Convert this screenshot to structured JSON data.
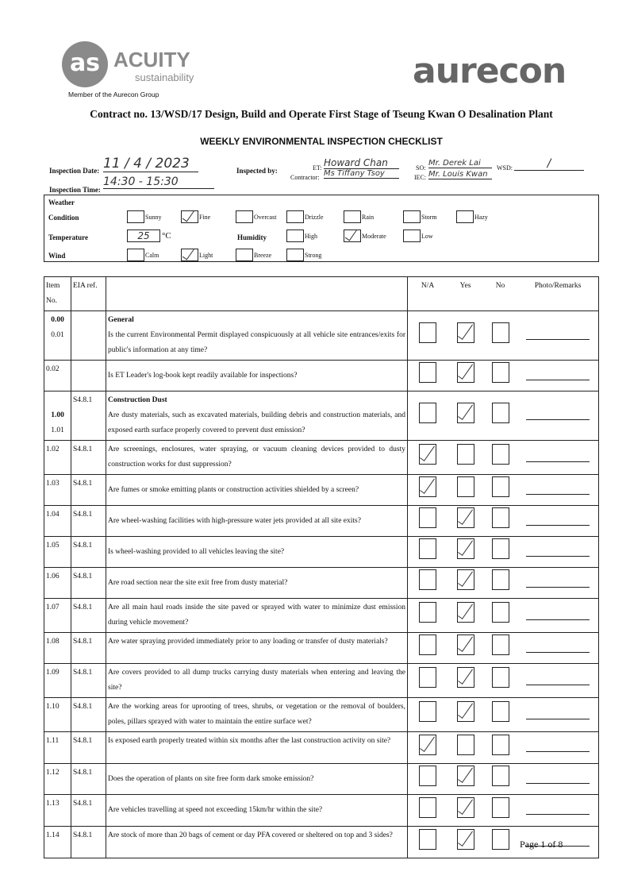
{
  "header": {
    "acuity_logo": "ACUITY sustainability",
    "acuity_sub": "Member of the Aurecon Group",
    "aurecon_logo": "aurecon",
    "contract": "Contract no. 13/WSD/17 Design, Build and Operate First Stage of Tseung Kwan O Desalination Plant",
    "title": "WEEKLY ENVIRONMENTAL INSPECTION CHECKLIST"
  },
  "info": {
    "date_label": "Inspection Date:",
    "date": "11 / 4 / 2023",
    "time_label": "Inspection Time:",
    "time": "14:30 - 15:30",
    "by_label": "Inspected by:",
    "et_label": "ET:",
    "et": "Howard Chan",
    "contractor_label": "Contractor:",
    "contractor": "Ms Tiffany Tsoy",
    "so_label": "SO:",
    "so": "Mr. Derek Lai",
    "iec_label": "IEC:",
    "iec": "Mr. Louis Kwan",
    "wsd_label": "WSD:",
    "wsd": "/"
  },
  "weather": {
    "heading": "Weather",
    "condition_label": "Condition",
    "temperature_label": "Temperature",
    "humidity_label": "Humidity",
    "wind_label": "Wind",
    "temperature": "25",
    "temp_unit": "°C",
    "conditions": [
      {
        "label": "Sunny",
        "checked": false
      },
      {
        "label": "Fine",
        "checked": true
      },
      {
        "label": "Overcast",
        "checked": false
      },
      {
        "label": "Drizzle",
        "checked": false
      },
      {
        "label": "Rain",
        "checked": false
      },
      {
        "label": "Storm",
        "checked": false
      },
      {
        "label": "Hazy",
        "checked": false
      }
    ],
    "humidity": [
      {
        "label": "High",
        "checked": false
      },
      {
        "label": "Moderate",
        "checked": true
      },
      {
        "label": "Low",
        "checked": false
      }
    ],
    "wind": [
      {
        "label": "Calm",
        "checked": false
      },
      {
        "label": "Light",
        "checked": true
      },
      {
        "label": "Breeze",
        "checked": false
      },
      {
        "label": "Strong",
        "checked": false
      }
    ]
  },
  "table": {
    "headers": {
      "item": "Item No.",
      "eia": "EIA ref.",
      "na": "N/A",
      "yes": "Yes",
      "no": "No",
      "remarks": "Photo/Remarks"
    },
    "rows": [
      {
        "item": "0.00\n0.01",
        "eia": "",
        "section": "General",
        "q": "Is the current Environmental Permit displayed conspicuously at all vehicle site entrances/exits for public's information at any time?",
        "ans": "yes"
      },
      {
        "item": "0.02",
        "eia": "",
        "q": "Is ET Leader's log-book kept readily available for inspections?",
        "ans": "yes"
      },
      {
        "item": "1.00\n1.01",
        "eia": "S4.8.1",
        "section": "Construction Dust",
        "q": "Are dusty materials, such as excavated materials, building debris and construction materials, and exposed earth surface properly covered to prevent dust emission?",
        "ans": "yes"
      },
      {
        "item": "1.02",
        "eia": "S4.8.1",
        "q": "Are screenings, enclosures, water spraying, or vacuum cleaning devices provided to dusty construction works for dust suppression?",
        "ans": "na"
      },
      {
        "item": "1.03",
        "eia": "S4.8.1",
        "q": "Are fumes or smoke emitting plants or construction activities shielded by a screen?",
        "ans": "na"
      },
      {
        "item": "1.04",
        "eia": "S4.8.1",
        "q": "Are wheel-washing facilities with high-pressure water jets provided at all site exits?",
        "ans": "yes"
      },
      {
        "item": "1.05",
        "eia": "S4.8.1",
        "q": "Is wheel-washing provided to all vehicles leaving the site?",
        "ans": "yes"
      },
      {
        "item": "1.06",
        "eia": "S4.8.1",
        "q": "Are road section near the site exit free from dusty material?",
        "ans": "yes"
      },
      {
        "item": "1.07",
        "eia": "S4.8.1",
        "q": "Are all main haul roads inside the site paved or sprayed with water to minimize dust emission during vehicle movement?",
        "ans": "yes"
      },
      {
        "item": "1.08",
        "eia": "S4.8.1",
        "q": "Are water spraying provided immediately prior to any loading or transfer of dusty materials?",
        "ans": "yes"
      },
      {
        "item": "1.09",
        "eia": "S4.8.1",
        "q": "Are covers provided to all dump trucks carrying dusty materials when entering and leaving the site?",
        "ans": "yes"
      },
      {
        "item": "1.10",
        "eia": "S4.8.1",
        "q": "Are the working areas for uprooting of trees, shrubs, or vegetation or the removal of boulders, poles, pillars sprayed with water to maintain the entire surface wet?",
        "ans": "yes"
      },
      {
        "item": "1.11",
        "eia": "S4.8.1",
        "q": "Is exposed earth properly treated within six months after the last construction activity on site?",
        "ans": "na"
      },
      {
        "item": "1.12",
        "eia": "S4.8.1",
        "q": "Does the operation of plants on site free form dark smoke emission?",
        "ans": "yes"
      },
      {
        "item": "1.13",
        "eia": "S4.8.1",
        "q": "Are vehicles travelling at speed not exceeding 15km/hr within the site?",
        "ans": "yes"
      },
      {
        "item": "1.14",
        "eia": "S4.8.1",
        "q": "Are stock of more than 20 bags of cement or day PFA covered or sheltered on top and 3 sides?",
        "ans": "yes"
      }
    ]
  },
  "footer": {
    "page": "Page 1 of 8"
  }
}
